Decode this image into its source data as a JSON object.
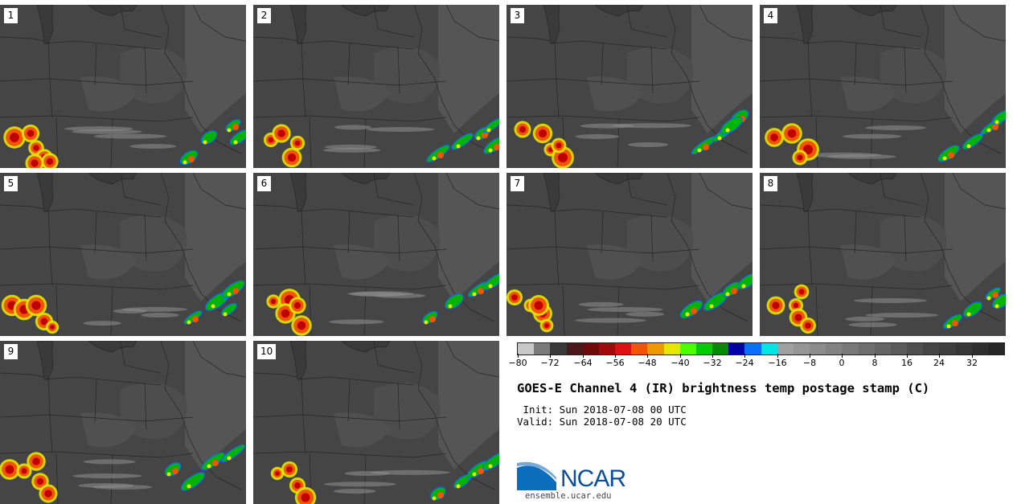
{
  "panels": [
    "1",
    "2",
    "3",
    "4",
    "5",
    "6",
    "7",
    "8",
    "9",
    "10"
  ],
  "colorbar": {
    "colors": [
      "#c8c8c8",
      "#7a7a7a",
      "#3a3a3a",
      "#4a1818",
      "#6e0a0a",
      "#a00a0a",
      "#dd1111",
      "#f25500",
      "#eb9a00",
      "#e6e600",
      "#4dff00",
      "#00cc00",
      "#008a00",
      "#0000aa",
      "#0a6eff",
      "#00e6e6",
      "#a0a0a0",
      "#969696",
      "#8c8c8c",
      "#828282",
      "#787878",
      "#6e6e6e",
      "#646464",
      "#5a5a5a",
      "#505050",
      "#464646",
      "#3e3e3e",
      "#363636",
      "#2e2e2e",
      "#262626"
    ],
    "tick_labels": [
      "−80",
      "−72",
      "−64",
      "−56",
      "−48",
      "−40",
      "−32",
      "−24",
      "−16",
      "−8",
      "0",
      "8",
      "16",
      "24",
      "32"
    ]
  },
  "title": "GOES-E Channel 4 (IR) brightness temp postage stamp (C)",
  "init_line": " Init: Sun 2018-07-08 00 UTC",
  "valid_line": "Valid: Sun 2018-07-08 20 UTC",
  "logo": {
    "text": "NCAR",
    "url": "ensemble.ucar.edu",
    "color": "#0a4e9c"
  }
}
